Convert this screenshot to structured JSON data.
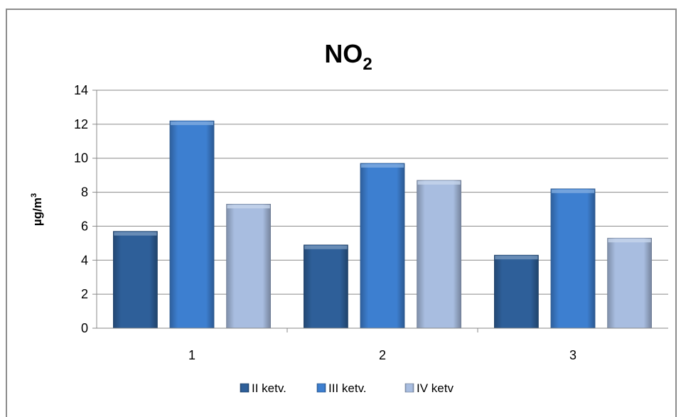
{
  "chart_data": {
    "type": "bar",
    "title": "NO",
    "title_subscript": "2",
    "xlabel": "",
    "ylabel": "µg/m",
    "ylabel_superscript": "3",
    "categories": [
      "1",
      "2",
      "3"
    ],
    "ylim": [
      0,
      14
    ],
    "yticks": [
      0,
      2,
      4,
      6,
      8,
      10,
      12,
      14
    ],
    "grid": true,
    "legend_position": "bottom",
    "series": [
      {
        "name": "II ketv.",
        "values": [
          5.7,
          4.9,
          4.3
        ],
        "color": "#2e5f99"
      },
      {
        "name": "III ketv.",
        "values": [
          12.2,
          9.7,
          8.2
        ],
        "color": "#3d7fd0"
      },
      {
        "name": "IV ketv",
        "values": [
          7.3,
          8.7,
          5.3
        ],
        "color": "#a8bde0"
      }
    ]
  }
}
